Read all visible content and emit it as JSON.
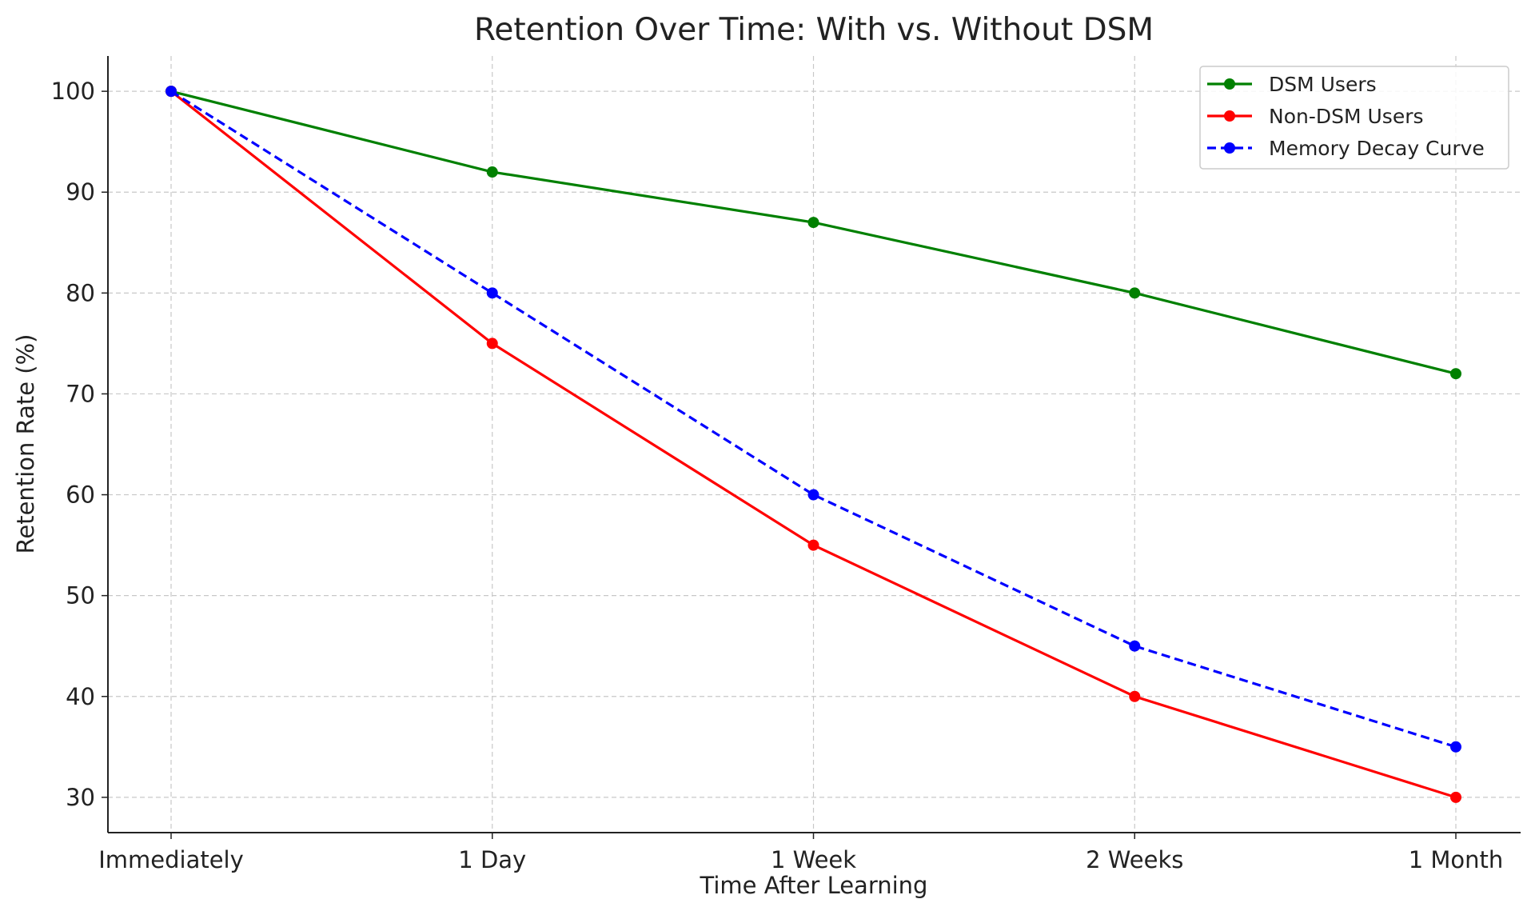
{
  "chart_data": {
    "type": "line",
    "title": "Retention Over Time: With vs. Without DSM",
    "xlabel": "Time After Learning",
    "ylabel": "Retention Rate (%)",
    "categories": [
      "Immediately",
      "1 Day",
      "1 Week",
      "2 Weeks",
      "1 Month"
    ],
    "ylim": [
      26.5,
      103.5
    ],
    "yticks": [
      30,
      40,
      50,
      60,
      70,
      80,
      90,
      100
    ],
    "grid": true,
    "legend_position": "top-right",
    "series": [
      {
        "name": "DSM Users",
        "values": [
          100,
          92,
          87,
          80,
          72
        ],
        "color": "#008000",
        "dash": "solid",
        "marker": "circle"
      },
      {
        "name": "Non-DSM Users",
        "values": [
          100,
          75,
          55,
          40,
          30
        ],
        "color": "#ff0000",
        "dash": "solid",
        "marker": "circle"
      },
      {
        "name": "Memory Decay Curve",
        "values": [
          100,
          80,
          60,
          45,
          35
        ],
        "color": "#0000ff",
        "dash": "dashed",
        "marker": "circle"
      }
    ]
  }
}
